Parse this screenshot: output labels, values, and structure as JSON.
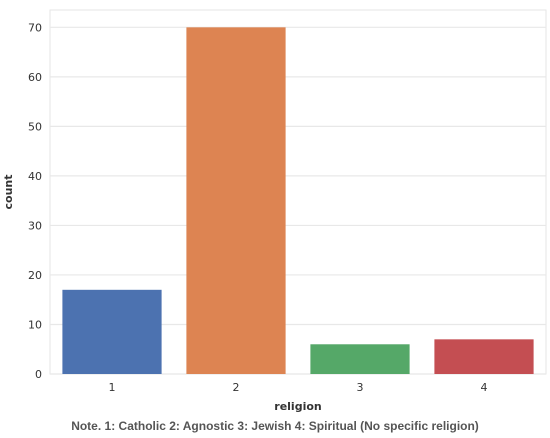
{
  "chart_data": {
    "type": "bar",
    "categories": [
      "1",
      "2",
      "3",
      "4"
    ],
    "values": [
      17,
      70,
      6,
      7
    ],
    "colors": [
      "#4c72b0",
      "#dd8452",
      "#55a868",
      "#c44e52"
    ],
    "xlabel": "religion",
    "ylabel": "count",
    "ylim": [
      0,
      73.5
    ],
    "yticks": [
      0,
      10,
      20,
      30,
      40,
      50,
      60,
      70
    ],
    "grid": true,
    "background": "#ffffff",
    "grid_color": "#e8e8e8"
  },
  "note": "Note. 1: Catholic 2: Agnostic 3: Jewish 4: Spiritual (No specific religion)"
}
